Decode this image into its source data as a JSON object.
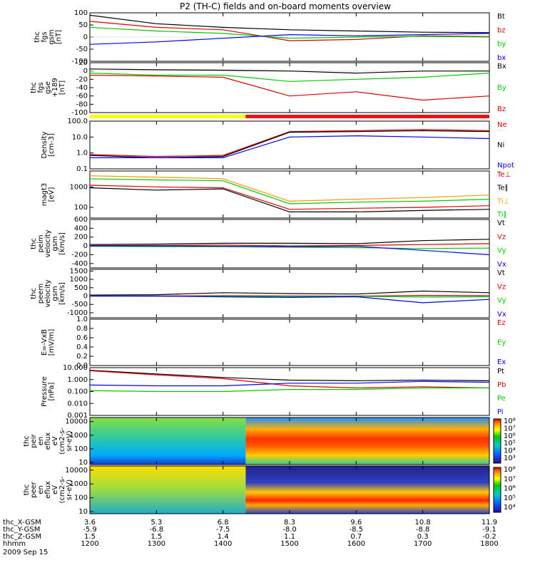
{
  "title": "P2 (TH-C) fields and on-board moments overview",
  "colors": {
    "black": "#000000",
    "red": "#dd0000",
    "green": "#00cc00",
    "blue": "#0000ff",
    "cyan": "#00cccc",
    "yellow": "#ffff00",
    "orange": "#ff9900"
  },
  "footer": {
    "rows": [
      {
        "label": "thc_X-GSM",
        "values": [
          "3.6",
          "5.3",
          "6.8",
          "8.3",
          "9.6",
          "10.8",
          "11.9"
        ]
      },
      {
        "label": "thc_Y-GSM",
        "values": [
          "-5.9",
          "-6.8",
          "-7.5",
          "-8.0",
          "-8.5",
          "-8.8",
          "-9.1"
        ]
      },
      {
        "label": "thc_Z-GSM",
        "values": [
          "1.5",
          "1.5",
          "1.4",
          "1.1",
          "0.7",
          "0.3",
          "-0.2"
        ]
      },
      {
        "label": "hhmm",
        "values": [
          "1200",
          "1300",
          "1400",
          "1500",
          "1600",
          "1700",
          "1800"
        ]
      }
    ],
    "date": "2009 Sep 15"
  },
  "chart_data": [
    {
      "id": "fgs",
      "type": "line",
      "ylabel": [
        "thc",
        "fgs",
        "gsm",
        "[nT]"
      ],
      "ylim": [
        -100,
        100
      ],
      "yticks": [
        "100",
        "50",
        "0",
        "-50",
        "-100"
      ],
      "yticks_values": [
        100,
        50,
        0,
        -50,
        -100
      ],
      "x": [
        "1200",
        "1300",
        "1400",
        "1500",
        "1600",
        "1700",
        "1800"
      ],
      "legend": [
        {
          "name": "Bt",
          "color": "#000000"
        },
        {
          "name": "bz",
          "color": "#dd0000"
        },
        {
          "name": "by",
          "color": "#00cc00"
        },
        {
          "name": "bx",
          "color": "#0000ff"
        }
      ],
      "series": [
        {
          "name": "Bt",
          "values": [
            90,
            55,
            40,
            30,
            25,
            20,
            18
          ]
        },
        {
          "name": "bz",
          "values": [
            65,
            40,
            30,
            -15,
            -10,
            5,
            2
          ]
        },
        {
          "name": "by",
          "values": [
            40,
            25,
            15,
            -5,
            0,
            3,
            0
          ]
        },
        {
          "name": "bx",
          "values": [
            -30,
            -20,
            -5,
            10,
            5,
            10,
            15
          ]
        }
      ]
    },
    {
      "id": "fgs-gse",
      "type": "line",
      "ylabel": [
        "thc",
        "fgs",
        "gse",
        "+189",
        "[nT]"
      ],
      "ylim": [
        -100,
        20
      ],
      "yticks": [
        "20",
        "0",
        "-20",
        "-40",
        "-60",
        "-80",
        "-100"
      ],
      "yticks_values": [
        20,
        0,
        -20,
        -40,
        -60,
        -80,
        -100
      ],
      "legend": [
        {
          "name": "Bx",
          "color": "#000000"
        },
        {
          "name": "By",
          "color": "#00cc00"
        },
        {
          "name": "Bz",
          "color": "#dd0000"
        }
      ],
      "series": [
        {
          "name": "Bx",
          "values": [
            5,
            3,
            2,
            0,
            -5,
            0,
            0
          ]
        },
        {
          "name": "By",
          "values": [
            -5,
            -10,
            -10,
            -25,
            -20,
            -15,
            -5
          ]
        },
        {
          "name": "Bz",
          "values": [
            -10,
            -12,
            -15,
            -60,
            -50,
            -70,
            -60
          ]
        }
      ]
    },
    {
      "id": "density",
      "type": "line",
      "yscale": "log",
      "ylabel": [
        "Density",
        "[cm-3]"
      ],
      "ylim": [
        0.1,
        100
      ],
      "yticks": [
        "100.0",
        "10.0",
        "1.0",
        "0.1"
      ],
      "yticks_values": [
        100,
        10,
        1,
        0.1
      ],
      "legend": [
        {
          "name": "Ne",
          "color": "#dd0000"
        },
        {
          "name": "Ni",
          "color": "#000000"
        },
        {
          "name": "Npot",
          "color": "#0000ff"
        }
      ],
      "series": [
        {
          "name": "Ne",
          "values": [
            0.8,
            0.6,
            0.7,
            22,
            25,
            30,
            25
          ]
        },
        {
          "name": "Ni",
          "values": [
            0.7,
            0.5,
            0.6,
            20,
            22,
            25,
            22
          ]
        },
        {
          "name": "Npot",
          "values": [
            0.5,
            0.5,
            0.5,
            10,
            12,
            10,
            8
          ]
        }
      ]
    },
    {
      "id": "temperature",
      "type": "line",
      "yscale": "log",
      "ylabel": [
        "magt3",
        "[eV]"
      ],
      "ylim": [
        30,
        6000
      ],
      "yticks": [
        "1000",
        "100"
      ],
      "yticks_values": [
        1000,
        100
      ],
      "legend": [
        {
          "name": "Te⊥",
          "color": "#dd0000"
        },
        {
          "name": "Te∥",
          "color": "#000000"
        },
        {
          "name": "Ti⊥",
          "color": "#ff9900"
        },
        {
          "name": "Ti∥",
          "color": "#00cc00"
        }
      ],
      "series": [
        {
          "name": "Te⊥",
          "values": [
            1200,
            1000,
            900,
            80,
            90,
            100,
            120
          ]
        },
        {
          "name": "Te∥",
          "values": [
            900,
            700,
            800,
            60,
            60,
            70,
            80
          ]
        },
        {
          "name": "Ti⊥",
          "values": [
            3500,
            3000,
            2500,
            200,
            250,
            300,
            400
          ]
        },
        {
          "name": "Ti∥",
          "values": [
            2500,
            2200,
            2000,
            150,
            180,
            200,
            250
          ]
        }
      ]
    },
    {
      "id": "peim-velocity",
      "type": "line",
      "ylabel": [
        "thc",
        "peim",
        "velocity",
        "gsm",
        "[km/s]"
      ],
      "ylim": [
        -500,
        600
      ],
      "yticks": [
        "600",
        "400",
        "200",
        "0",
        "-200",
        "-400"
      ],
      "yticks_values": [
        600,
        400,
        200,
        0,
        -200,
        -400
      ],
      "legend": [
        {
          "name": "Vt",
          "color": "#000000"
        },
        {
          "name": "Vz",
          "color": "#dd0000"
        },
        {
          "name": "Vy",
          "color": "#00cc00"
        },
        {
          "name": "Vx",
          "color": "#0000ff"
        }
      ],
      "series": [
        {
          "name": "Vt",
          "values": [
            30,
            40,
            60,
            60,
            50,
            120,
            150
          ]
        },
        {
          "name": "Vz",
          "values": [
            10,
            10,
            20,
            0,
            10,
            30,
            50
          ]
        },
        {
          "name": "Vy",
          "values": [
            -10,
            -20,
            -20,
            -30,
            -40,
            -60,
            -50
          ]
        },
        {
          "name": "Vx",
          "values": [
            0,
            0,
            -10,
            -20,
            -10,
            -100,
            -200
          ]
        }
      ]
    },
    {
      "id": "peem-velocity",
      "type": "line",
      "ylabel": [
        "thc",
        "peem",
        "velocity",
        "gsm",
        "[km/s]"
      ],
      "ylim": [
        -1300,
        1600
      ],
      "yticks": [
        "1500",
        "1000",
        "500",
        "0",
        "-500",
        "-1000"
      ],
      "yticks_values": [
        1500,
        1000,
        500,
        0,
        -500,
        -1000
      ],
      "legend": [
        {
          "name": "Vt",
          "color": "#000000"
        },
        {
          "name": "Vz",
          "color": "#dd0000"
        },
        {
          "name": "Vy",
          "color": "#00cc00"
        },
        {
          "name": "Vx",
          "color": "#0000ff"
        }
      ],
      "series": [
        {
          "name": "Vt",
          "values": [
            60,
            80,
            200,
            150,
            120,
            300,
            200
          ]
        },
        {
          "name": "Vz",
          "values": [
            0,
            10,
            20,
            10,
            0,
            40,
            20
          ]
        },
        {
          "name": "Vy",
          "values": [
            0,
            -10,
            -20,
            -30,
            -20,
            -60,
            -40
          ]
        },
        {
          "name": "Vx",
          "values": [
            0,
            0,
            -50,
            -80,
            -40,
            -400,
            -200
          ]
        }
      ]
    },
    {
      "id": "efield",
      "type": "line",
      "ylabel": [
        "E=-VxB",
        "[mV/m]"
      ],
      "ylim": [
        0,
        1
      ],
      "yticks": [
        "1.0",
        "0.8",
        "0.6",
        "0.4",
        "0.2",
        "0.0"
      ],
      "yticks_values": [
        1,
        0.8,
        0.6,
        0.4,
        0.2,
        0
      ],
      "legend": [
        {
          "name": "Ez",
          "color": "#dd0000"
        },
        {
          "name": "Ey",
          "color": "#00cc00"
        },
        {
          "name": "Ex",
          "color": "#0000ff"
        }
      ],
      "series": []
    },
    {
      "id": "pressure",
      "type": "line",
      "yscale": "log",
      "ylabel": [
        "Pressure",
        "[nPa]"
      ],
      "ylim": [
        0.001,
        10
      ],
      "yticks": [
        "10.000",
        "1.000",
        "0.100",
        "0.010",
        "0.001"
      ],
      "yticks_values": [
        10,
        1,
        0.1,
        0.01,
        0.001
      ],
      "legend": [
        {
          "name": "Pt",
          "color": "#000000"
        },
        {
          "name": "Pb",
          "color": "#dd0000"
        },
        {
          "name": "Pe",
          "color": "#00cc00"
        },
        {
          "name": "Pi",
          "color": "#0000ff"
        }
      ],
      "series": [
        {
          "name": "Pt",
          "values": [
            6.0,
            3.0,
            1.5,
            0.9,
            0.8,
            0.9,
            0.8
          ]
        },
        {
          "name": "Pb",
          "values": [
            5.5,
            2.5,
            1.2,
            0.3,
            0.2,
            0.25,
            0.2
          ]
        },
        {
          "name": "Pe",
          "values": [
            0.12,
            0.1,
            0.1,
            0.15,
            0.15,
            0.2,
            0.2
          ]
        },
        {
          "name": "Pi",
          "values": [
            0.35,
            0.3,
            0.3,
            0.5,
            0.5,
            0.7,
            0.6
          ]
        }
      ]
    },
    {
      "id": "peir-spectrogram",
      "type": "heatmap",
      "yscale": "log",
      "ylabel": [
        "thc",
        "peir",
        "en",
        "eflux",
        "eV",
        "(cm2-s-",
        "sr-eV)"
      ],
      "ylim": [
        7,
        20000
      ],
      "yticks": [
        "10000",
        "1000",
        "100",
        "10"
      ],
      "yticks_values": [
        10000,
        1000,
        100,
        10
      ],
      "colorbar": {
        "ticks": [
          "10⁸",
          "10⁷",
          "10⁶",
          "10⁵",
          "10⁴",
          "10³"
        ]
      }
    },
    {
      "id": "peer-spectrogram",
      "type": "heatmap",
      "yscale": "log",
      "ylabel": [
        "thc",
        "peer",
        "en",
        "eflux",
        "eV",
        "(cm2-s-",
        "sr-eV)"
      ],
      "ylim": [
        7,
        20000
      ],
      "yticks": [
        "10000",
        "1000",
        "100",
        "10"
      ],
      "yticks_values": [
        10000,
        1000,
        100,
        10
      ],
      "colorbar": {
        "ticks": [
          "10⁸",
          "10⁷",
          "10⁶",
          "10⁵",
          "10⁴"
        ]
      }
    }
  ]
}
